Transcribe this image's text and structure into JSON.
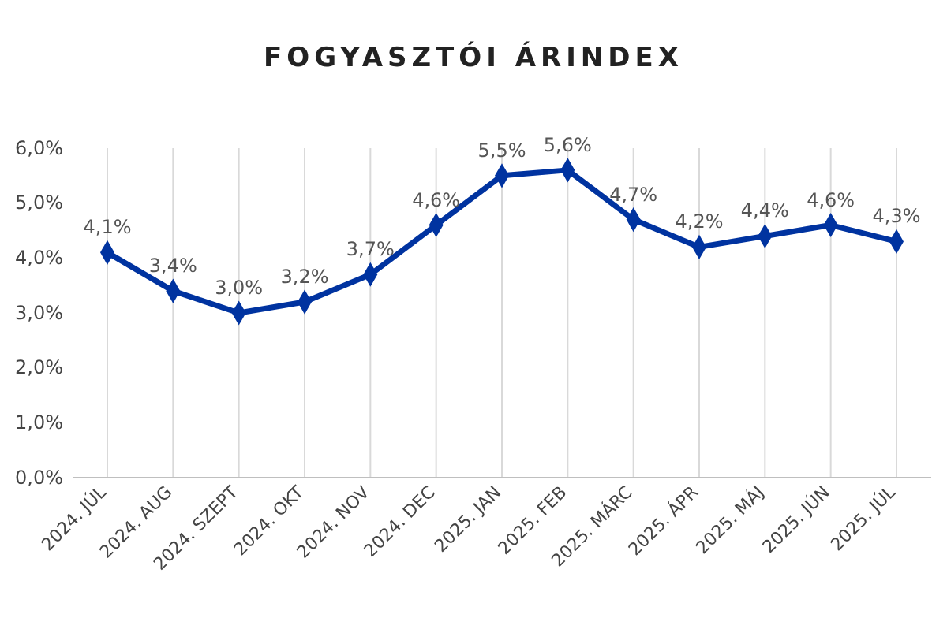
{
  "chart_data": {
    "type": "line",
    "title": "FOGYASZTÓI ÁRINDEX",
    "categories": [
      "2024. JÚL",
      "2024. AUG",
      "2024. SZEPT",
      "2024. OKT",
      "2024. NOV",
      "2024. DEC",
      "2025. JAN",
      "2025. FEB",
      "2025. MÁRC",
      "2025. ÁPR",
      "2025. MÁJ",
      "2025. JÚN",
      "2025. JÚL"
    ],
    "series": [
      {
        "color": "#0033a0",
        "values": [
          4.1,
          3.4,
          3.0,
          3.2,
          3.7,
          4.6,
          5.5,
          5.6,
          4.7,
          4.2,
          4.4,
          4.6,
          4.3
        ],
        "value_labels": [
          "4,1%",
          "3,4%",
          "3,0%",
          "3,2%",
          "3,7%",
          "4,6%",
          "5,5%",
          "5,6%",
          "4,7%",
          "4,2%",
          "4,4%",
          "4,6%",
          "4,3%"
        ]
      }
    ],
    "ylim": [
      0,
      6
    ],
    "yticks": [
      {
        "value": 0,
        "label": "0,0%"
      },
      {
        "value": 1,
        "label": "1,0%"
      },
      {
        "value": 2,
        "label": "2,0%"
      },
      {
        "value": 3,
        "label": "3,0%"
      },
      {
        "value": 4,
        "label": "4,0%"
      },
      {
        "value": 5,
        "label": "5,0%"
      },
      {
        "value": 6,
        "label": "6,0%"
      }
    ],
    "grid": "x",
    "marker": "diamond",
    "line_style": "solid"
  }
}
